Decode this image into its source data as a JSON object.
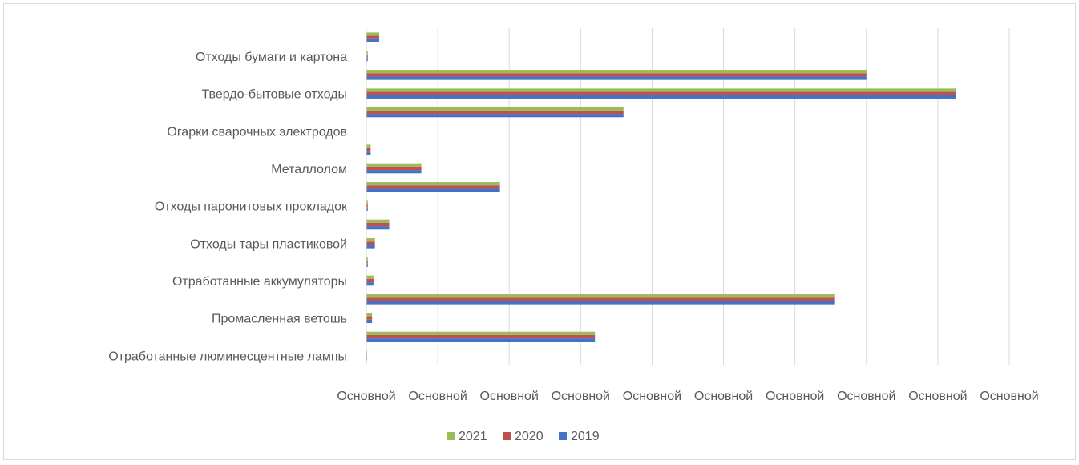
{
  "chart_data": {
    "type": "bar",
    "orientation": "horizontal",
    "categories_bottom_to_top": [
      "Отработанные люминесцентные лампы",
      "",
      "Промасленная ветошь",
      "",
      "Отработанные аккумуляторы",
      "",
      "Отходы тары пластиковой",
      "",
      "Отходы паронитовых прокладок",
      "",
      "Металлолом",
      "",
      "Огарки сварочных электродов",
      "",
      "Твердо-бытовые отходы",
      "",
      "Отходы бумаги и картона",
      ""
    ],
    "series": [
      {
        "name": "2019",
        "color": "#4472C4",
        "values": [
          0.01,
          3.2,
          0.08,
          6.55,
          0.1,
          0.02,
          0.12,
          0.32,
          0.02,
          1.87,
          0.77,
          0.06,
          0.0,
          3.6,
          8.25,
          7.0,
          0.02,
          0.18
        ]
      },
      {
        "name": "2020",
        "color": "#C0504D",
        "values": [
          0.01,
          3.2,
          0.08,
          6.55,
          0.1,
          0.02,
          0.12,
          0.32,
          0.02,
          1.87,
          0.77,
          0.06,
          0.0,
          3.6,
          8.25,
          7.0,
          0.02,
          0.18
        ]
      },
      {
        "name": "2021",
        "color": "#9BBB59",
        "values": [
          0.01,
          3.2,
          0.08,
          6.55,
          0.1,
          0.02,
          0.12,
          0.32,
          0.02,
          1.87,
          0.77,
          0.06,
          0.0,
          3.6,
          8.25,
          7.0,
          0.02,
          0.18
        ]
      }
    ],
    "xlim": [
      0,
      9
    ],
    "x_tick_labels": [
      "Основной",
      "Основной",
      "Основной",
      "Основной",
      "Основной",
      "Основной",
      "Основной",
      "Основной",
      "Основной",
      "Основной"
    ],
    "grid": "vertical",
    "legend_position": "bottom",
    "legend_order": [
      "2021",
      "2020",
      "2019"
    ]
  }
}
